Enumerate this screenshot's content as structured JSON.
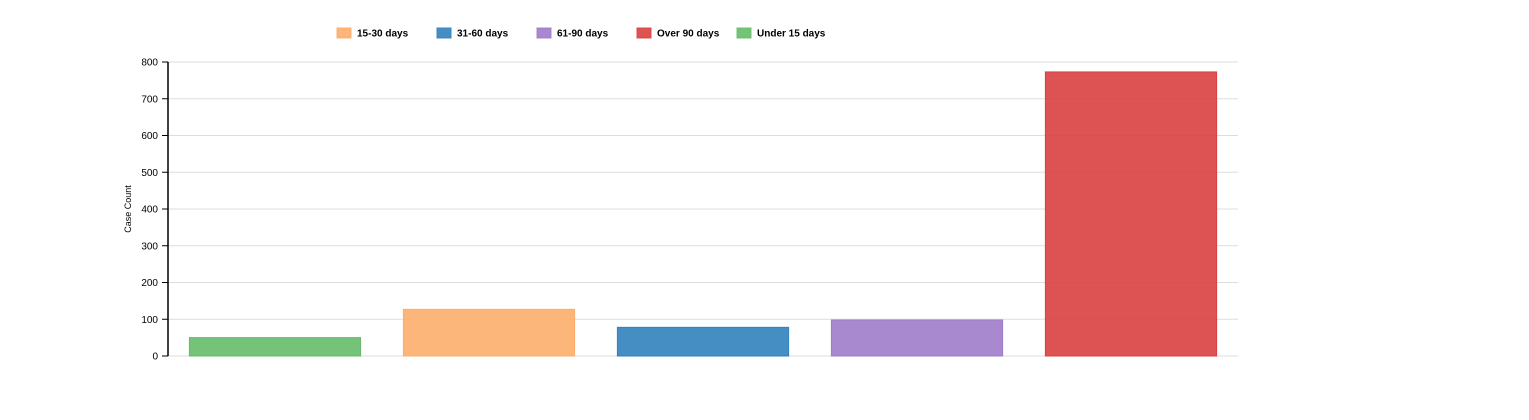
{
  "chart_data": {
    "type": "bar",
    "title": "",
    "xlabel": "",
    "ylabel": "Case Count",
    "ylim": [
      0,
      800
    ],
    "yticks": [
      0,
      100,
      200,
      300,
      400,
      500,
      600,
      700,
      800
    ],
    "grid": true,
    "legend_position": "top",
    "legend": [
      {
        "name": "15-30 days",
        "color": "#fdae6b"
      },
      {
        "name": "31-60 days",
        "color": "#3182bd"
      },
      {
        "name": "61-90 days",
        "color": "#9e7bc9"
      },
      {
        "name": "Over 90 days",
        "color": "#d94040"
      },
      {
        "name": "Under 15 days",
        "color": "#66bb6a"
      }
    ],
    "bars": [
      {
        "category": "Under 15 days",
        "value": 50,
        "color": "#66bb6a"
      },
      {
        "category": "15-30 days",
        "value": 127,
        "color": "#fdae6b"
      },
      {
        "category": "31-60 days",
        "value": 78,
        "color": "#3182bd"
      },
      {
        "category": "61-90 days",
        "value": 98,
        "color": "#9e7bc9"
      },
      {
        "category": "Over 90 days",
        "value": 773,
        "color": "#d94040"
      }
    ]
  }
}
